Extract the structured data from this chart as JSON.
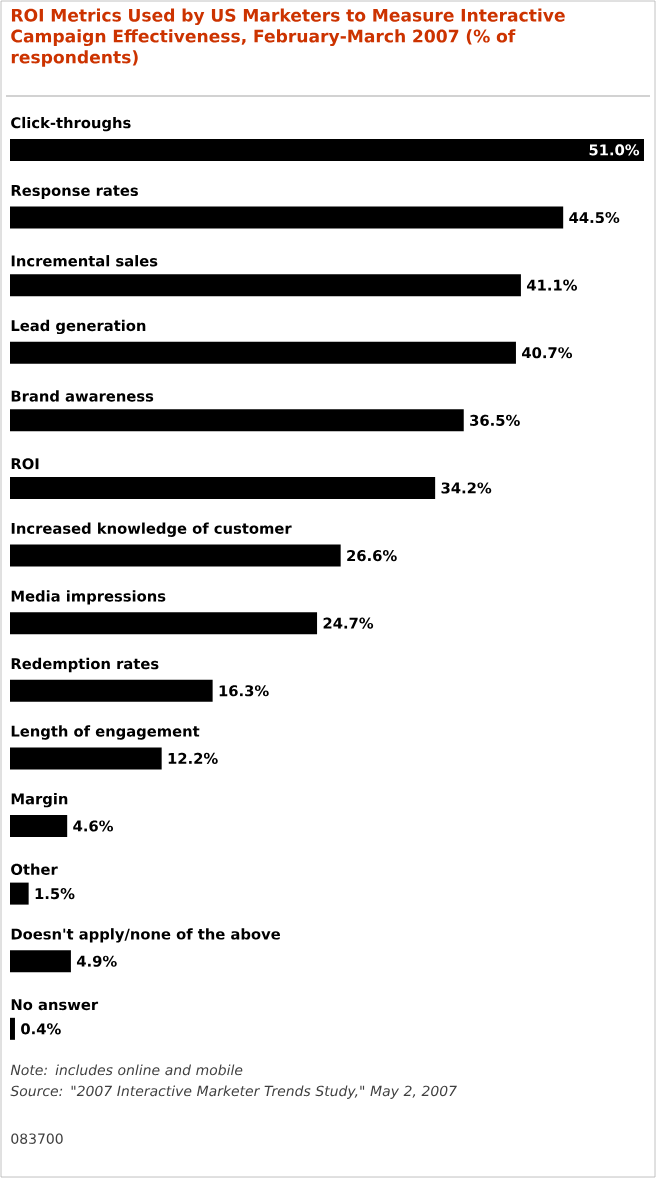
{
  "chart_data": {
    "type": "bar",
    "orientation": "horizontal",
    "title": "ROI Metrics Used by US Marketers to Measure Interactive Campaign Effectiveness, February-March 2007 (% of respondents)",
    "categories": [
      "Click-throughs",
      "Response rates",
      "Incremental sales",
      "Lead generation",
      "Brand awareness",
      "ROI",
      "Increased knowledge of customer",
      "Media impressions",
      "Redemption rates",
      "Length of engagement",
      "Margin",
      "Other",
      "Doesn't apply/none of the above",
      "No answer"
    ],
    "values": [
      51.0,
      44.5,
      41.1,
      40.7,
      36.5,
      34.2,
      26.6,
      24.7,
      16.3,
      12.2,
      4.6,
      1.5,
      4.9,
      0.4
    ],
    "value_labels": [
      "51.0%",
      "44.5%",
      "41.1%",
      "40.7%",
      "36.5%",
      "34.2%",
      "26.6%",
      "24.7%",
      "16.3%",
      "12.2%",
      "4.6%",
      "1.5%",
      "4.9%",
      "0.4%"
    ],
    "color": "#000000",
    "annotations": [
      "Note: includes online and mobile",
      "Source: \"2007 Interactive Marketer Trends Study,\" May 2, 2007",
      "083700"
    ]
  }
}
